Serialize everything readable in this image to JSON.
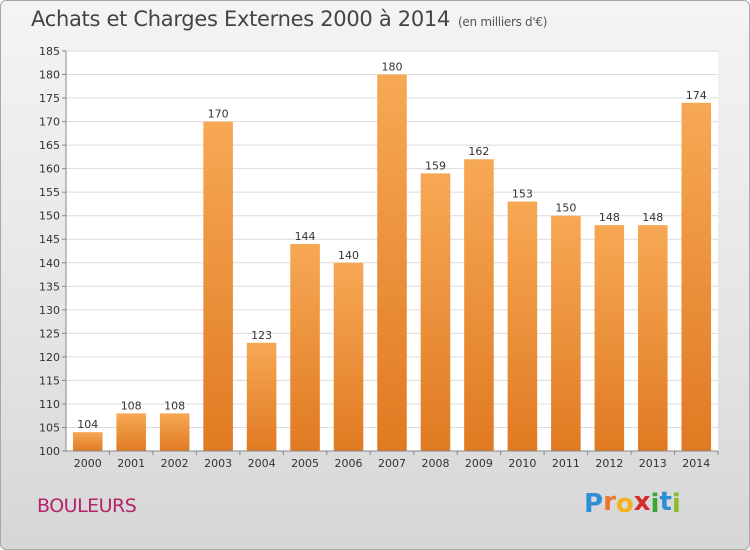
{
  "header": {
    "title": "Achats et Charges Externes 2000 à 2014",
    "unit": "(en milliers d'€)"
  },
  "footer": {
    "commune": "BOULEURS",
    "logo_letters": [
      "P",
      "r",
      "o",
      "x",
      "i",
      "t",
      "i"
    ],
    "logo_colors": [
      "#2e8fd6",
      "#e8792b",
      "#f2b21c",
      "#d62b2b",
      "#3aa63a",
      "#2e8fd6",
      "#8bbd2a"
    ]
  },
  "colors": {
    "bar_light": "#f7a855",
    "bar_dark": "#e07a22",
    "plot_bg": "#ffffff",
    "grid": "#dcdcdc",
    "axis_text": "#333333"
  },
  "chart_data": {
    "type": "bar",
    "categories": [
      "2000",
      "2001",
      "2002",
      "2003",
      "2004",
      "2005",
      "2006",
      "2007",
      "2008",
      "2009",
      "2010",
      "2011",
      "2012",
      "2013",
      "2014"
    ],
    "values": [
      104,
      108,
      108,
      170,
      123,
      144,
      140,
      180,
      159,
      162,
      153,
      150,
      148,
      148,
      174
    ],
    "ylim": [
      100,
      185
    ],
    "yticks": [
      100,
      105,
      110,
      115,
      120,
      125,
      130,
      135,
      140,
      145,
      150,
      155,
      160,
      165,
      170,
      175,
      180,
      185
    ],
    "grid": true,
    "data_labels": true
  }
}
